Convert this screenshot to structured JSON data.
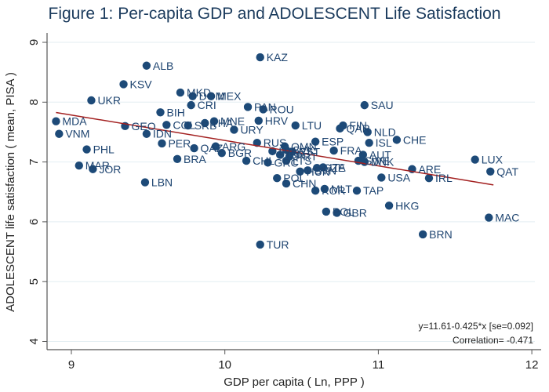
{
  "title": "Figure 1: Per-capita GDP and ADOLESCENT Life Satisfaction",
  "chart_data": {
    "type": "scatter",
    "title": "Figure 1: Per-capita GDP and ADOLESCENT Life Satisfaction",
    "xlabel": "GDP per capita ( Ln, PPP )",
    "ylabel": "ADOLESCENT life satisfaction ( mean, PISA )",
    "xlim": [
      8.9,
      12.05
    ],
    "ylim": [
      3.85,
      9.1
    ],
    "xticks": [
      9,
      10,
      11,
      12
    ],
    "yticks": [
      4,
      5,
      6,
      7,
      8,
      9
    ],
    "grid": "horizontal",
    "colors": {
      "point": "#1d4a78",
      "label": "#1e4470",
      "fit": "#a32020",
      "grid": "#e3eef2"
    },
    "fit_line": {
      "intercept": 11.61,
      "slope": -0.425,
      "x_range": [
        8.9,
        11.75
      ]
    },
    "annotations": [
      "y=11.61-0.425*x [se=0.092]",
      "Correlation= -0.471"
    ],
    "points": [
      {
        "label": "ALB",
        "x": 9.49,
        "y": 8.61
      },
      {
        "label": "KAZ",
        "x": 10.23,
        "y": 8.75
      },
      {
        "label": "KSV",
        "x": 9.34,
        "y": 8.3
      },
      {
        "label": "UKR",
        "x": 9.13,
        "y": 8.03
      },
      {
        "label": "MKD",
        "x": 9.71,
        "y": 8.16
      },
      {
        "label": "DOM",
        "x": 9.79,
        "y": 8.1
      },
      {
        "label": "MEX",
        "x": 9.91,
        "y": 8.1
      },
      {
        "label": "CRI",
        "x": 9.78,
        "y": 7.95
      },
      {
        "label": "PAN",
        "x": 10.15,
        "y": 7.92
      },
      {
        "label": "ROU",
        "x": 10.25,
        "y": 7.88
      },
      {
        "label": "SAU",
        "x": 10.91,
        "y": 7.95
      },
      {
        "label": "BIH",
        "x": 9.58,
        "y": 7.83
      },
      {
        "label": "MDA",
        "x": 8.9,
        "y": 7.68
      },
      {
        "label": "VNM",
        "x": 8.92,
        "y": 7.47
      },
      {
        "label": "GEO",
        "x": 9.35,
        "y": 7.6
      },
      {
        "label": "COL",
        "x": 9.62,
        "y": 7.62
      },
      {
        "label": "SRB",
        "x": 9.76,
        "y": 7.61
      },
      {
        "label": "THA",
        "x": 9.87,
        "y": 7.65
      },
      {
        "label": "MNE",
        "x": 9.93,
        "y": 7.68
      },
      {
        "label": "URY",
        "x": 10.06,
        "y": 7.54
      },
      {
        "label": "HRV",
        "x": 10.22,
        "y": 7.69
      },
      {
        "label": "LTU",
        "x": 10.46,
        "y": 7.61
      },
      {
        "label": "FIN",
        "x": 10.77,
        "y": 7.61
      },
      {
        "label": "QAR",
        "x": 10.75,
        "y": 7.56
      },
      {
        "label": "NLD",
        "x": 10.93,
        "y": 7.5
      },
      {
        "label": "ISL",
        "x": 10.94,
        "y": 7.32
      },
      {
        "label": "CHE",
        "x": 11.12,
        "y": 7.37
      },
      {
        "label": "IDN",
        "x": 9.49,
        "y": 7.47
      },
      {
        "label": "PHL",
        "x": 9.1,
        "y": 7.21
      },
      {
        "label": "PER",
        "x": 9.59,
        "y": 7.31
      },
      {
        "label": "QAZ",
        "x": 9.8,
        "y": 7.23
      },
      {
        "label": "ARG",
        "x": 9.94,
        "y": 7.26
      },
      {
        "label": "BGR",
        "x": 9.98,
        "y": 7.15
      },
      {
        "label": "BRA",
        "x": 9.69,
        "y": 7.05
      },
      {
        "label": "RUS",
        "x": 10.21,
        "y": 7.32
      },
      {
        "label": "OMN",
        "x": 10.39,
        "y": 7.26
      },
      {
        "label": "ESP",
        "x": 10.59,
        "y": 7.34
      },
      {
        "label": "POL",
        "x": 10.34,
        "y": 6.73
      },
      {
        "label": "LVA",
        "x": 10.31,
        "y": 7.18
      },
      {
        "label": "SVK",
        "x": 10.4,
        "y": 7.2
      },
      {
        "label": "EST",
        "x": 10.44,
        "y": 7.17
      },
      {
        "label": "ISR",
        "x": 10.36,
        "y": 7.12
      },
      {
        "label": "PRT",
        "x": 10.42,
        "y": 7.09
      },
      {
        "label": "LTS",
        "x": 10.4,
        "y": 7.02
      },
      {
        "label": "FRA",
        "x": 10.71,
        "y": 7.19
      },
      {
        "label": "AUT",
        "x": 10.9,
        "y": 7.12
      },
      {
        "label": "CHL",
        "x": 10.14,
        "y": 7.02
      },
      {
        "label": "GRC",
        "x": 10.28,
        "y": 6.99
      },
      {
        "label": "SWE",
        "x": 10.87,
        "y": 7.02
      },
      {
        "label": "DNK",
        "x": 10.91,
        "y": 7.0
      },
      {
        "label": "ITA",
        "x": 10.64,
        "y": 6.91
      },
      {
        "label": "CZE",
        "x": 10.6,
        "y": 6.9
      },
      {
        "label": "SVN",
        "x": 10.54,
        "y": 6.86
      },
      {
        "label": "HUN",
        "x": 10.49,
        "y": 6.84
      },
      {
        "label": "CHN",
        "x": 10.4,
        "y": 6.64
      },
      {
        "label": "MLT",
        "x": 10.65,
        "y": 6.55
      },
      {
        "label": "KOR",
        "x": 10.59,
        "y": 6.52
      },
      {
        "label": "TAP",
        "x": 10.86,
        "y": 6.52
      },
      {
        "label": "USA",
        "x": 11.02,
        "y": 6.74
      },
      {
        "label": "ARE",
        "x": 11.22,
        "y": 6.88
      },
      {
        "label": "IRL",
        "x": 11.33,
        "y": 6.73
      },
      {
        "label": "LUX",
        "x": 11.63,
        "y": 7.04
      },
      {
        "label": "QAT",
        "x": 11.73,
        "y": 6.84
      },
      {
        "label": "HKG",
        "x": 11.07,
        "y": 6.27
      },
      {
        "label": "POL2",
        "display": "POL",
        "x": 10.66,
        "y": 6.17
      },
      {
        "label": "GBR",
        "x": 10.73,
        "y": 6.15
      },
      {
        "label": "MAC",
        "x": 11.72,
        "y": 6.07
      },
      {
        "label": "BRN",
        "x": 11.29,
        "y": 5.79
      },
      {
        "label": "TUR",
        "x": 10.23,
        "y": 5.62
      },
      {
        "label": "MAR",
        "x": 9.05,
        "y": 6.94
      },
      {
        "label": "JOR",
        "x": 9.14,
        "y": 6.88
      },
      {
        "label": "LBN",
        "x": 9.48,
        "y": 6.66
      }
    ]
  }
}
